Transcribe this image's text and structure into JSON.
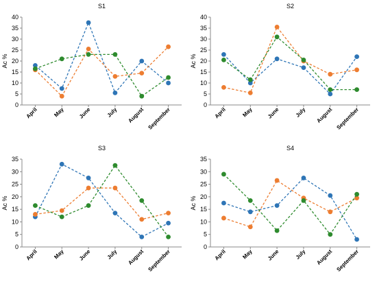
{
  "colors": {
    "blue": "#2e75b6",
    "orange": "#ed7d31",
    "green": "#2e8b2e"
  },
  "chart_data": [
    {
      "type": "line",
      "title": "S1",
      "ylabel": "Ac %",
      "ylim": [
        0,
        40
      ],
      "yticks": [
        0,
        5,
        10,
        15,
        20,
        25,
        30,
        35,
        40
      ],
      "categories": [
        "April",
        "May",
        "June",
        "July",
        "August",
        "September"
      ],
      "series": [
        {
          "color": "#2e75b6",
          "values": [
            18,
            7.5,
            37.5,
            5.5,
            20,
            10
          ]
        },
        {
          "color": "#ed7d31",
          "values": [
            16,
            4,
            25.5,
            13,
            14.5,
            26.5
          ]
        },
        {
          "color": "#2e8b2e",
          "values": [
            16.5,
            21,
            23,
            23,
            4,
            12.5
          ]
        }
      ]
    },
    {
      "type": "line",
      "title": "S2",
      "ylabel": "Ac %",
      "ylim": [
        0,
        40
      ],
      "yticks": [
        0,
        5,
        10,
        15,
        20,
        25,
        30,
        35,
        40
      ],
      "categories": [
        "April",
        "May",
        "June",
        "July",
        "August",
        "September"
      ],
      "series": [
        {
          "color": "#2e75b6",
          "values": [
            23,
            10,
            21,
            17,
            5,
            22
          ]
        },
        {
          "color": "#ed7d31",
          "values": [
            8,
            5.5,
            35.5,
            20,
            14,
            16
          ]
        },
        {
          "color": "#2e8b2e",
          "values": [
            20.5,
            11.5,
            31,
            20.5,
            7,
            7
          ]
        }
      ]
    },
    {
      "type": "line",
      "title": "S3",
      "ylabel": "Ac %",
      "ylim": [
        0,
        35
      ],
      "yticks": [
        0,
        5,
        10,
        15,
        20,
        25,
        30,
        35
      ],
      "categories": [
        "April",
        "May",
        "June",
        "July",
        "August",
        "September"
      ],
      "series": [
        {
          "color": "#2e75b6",
          "values": [
            12,
            33,
            27.5,
            13.5,
            4,
            9.5
          ]
        },
        {
          "color": "#ed7d31",
          "values": [
            13,
            14.5,
            23.5,
            23.5,
            11,
            13.5
          ]
        },
        {
          "color": "#2e8b2e",
          "values": [
            16.5,
            12,
            16.5,
            32.5,
            18.5,
            4
          ]
        }
      ]
    },
    {
      "type": "line",
      "title": "S4",
      "ylabel": "Ac %",
      "ylim": [
        0,
        35
      ],
      "yticks": [
        0,
        5,
        10,
        15,
        20,
        25,
        30,
        35
      ],
      "categories": [
        "April",
        "May",
        "June",
        "July",
        "August",
        "September"
      ],
      "series": [
        {
          "color": "#2e75b6",
          "values": [
            17.5,
            14,
            16.5,
            27.5,
            20.5,
            3
          ]
        },
        {
          "color": "#ed7d31",
          "values": [
            11.5,
            8,
            26.5,
            19.5,
            14,
            19.5
          ]
        },
        {
          "color": "#2e8b2e",
          "values": [
            29,
            18.5,
            6.5,
            18.5,
            5,
            21
          ]
        }
      ]
    }
  ]
}
